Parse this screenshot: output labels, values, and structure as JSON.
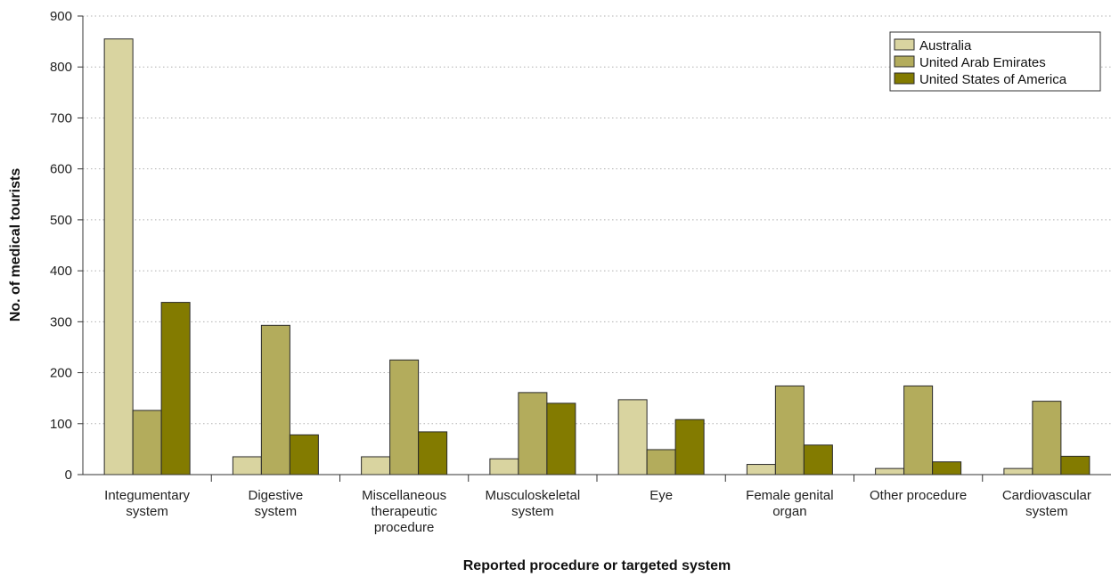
{
  "chart_data": {
    "type": "bar",
    "title": "",
    "xlabel": "Reported procedure or targeted system",
    "ylabel": "No. of medical tourists",
    "ylim": [
      0,
      900
    ],
    "yticks": [
      "0",
      "100",
      "200",
      "300",
      "400",
      "500",
      "600",
      "700",
      "800",
      "900"
    ],
    "grid": true,
    "legend_position": "top-right",
    "categories": [
      [
        "Integumentary",
        "system"
      ],
      [
        "Digestive",
        "system"
      ],
      [
        "Miscellaneous",
        "therapeutic",
        "procedure"
      ],
      [
        "Musculoskeletal",
        "system"
      ],
      [
        "Eye"
      ],
      [
        "Female genital",
        "organ"
      ],
      [
        "Other procedure"
      ],
      [
        "Cardiovascular",
        "system"
      ]
    ],
    "series": [
      {
        "name": "Australia",
        "color": "#d9d4a0",
        "values": [
          855,
          35,
          35,
          31,
          147,
          20,
          12,
          12
        ]
      },
      {
        "name": "United Arab Emirates",
        "color": "#b3ac5c",
        "values": [
          126,
          293,
          225,
          161,
          49,
          174,
          174,
          144
        ]
      },
      {
        "name": "United States of America",
        "color": "#837b00",
        "values": [
          338,
          78,
          84,
          140,
          108,
          58,
          25,
          36
        ]
      }
    ]
  }
}
